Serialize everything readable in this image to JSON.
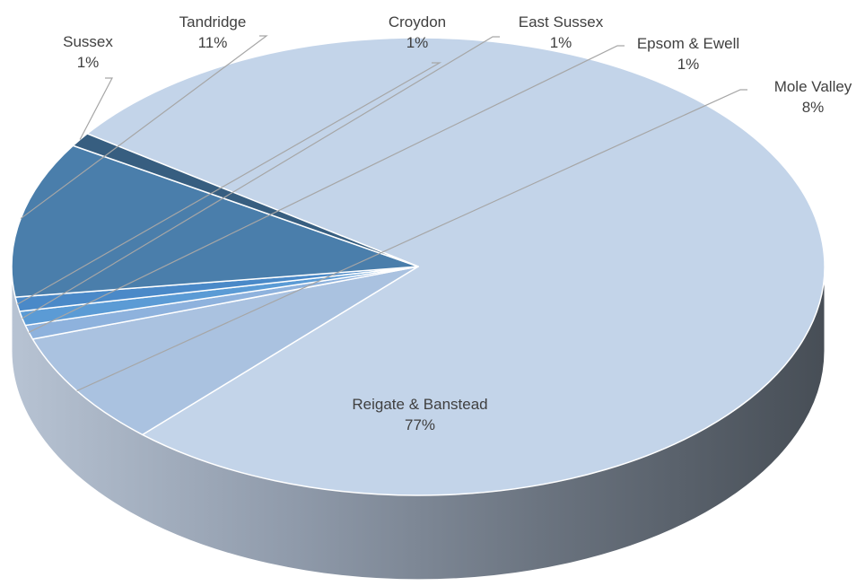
{
  "chart_data": {
    "type": "pie",
    "style": "3d",
    "title": "",
    "legend": "none",
    "slices": [
      {
        "name": "Reigate & Banstead",
        "value": 77,
        "label_value": "77%",
        "color": "#c3d4e9"
      },
      {
        "name": "Mole Valley",
        "value": 8,
        "label_value": "8%",
        "color": "#aac2e0"
      },
      {
        "name": "Epsom & Ewell",
        "value": 1,
        "label_value": "1%",
        "color": "#8eb2dd"
      },
      {
        "name": "East Sussex",
        "value": 1,
        "label_value": "1%",
        "color": "#5b9bd5"
      },
      {
        "name": "Croydon",
        "value": 1,
        "label_value": "1%",
        "color": "#4a89c8"
      },
      {
        "name": "Tandridge",
        "value": 11,
        "label_value": "11%",
        "color": "#4a7eab"
      },
      {
        "name": "Sussex",
        "value": 1,
        "label_value": "1%",
        "color": "#375e80"
      }
    ]
  }
}
